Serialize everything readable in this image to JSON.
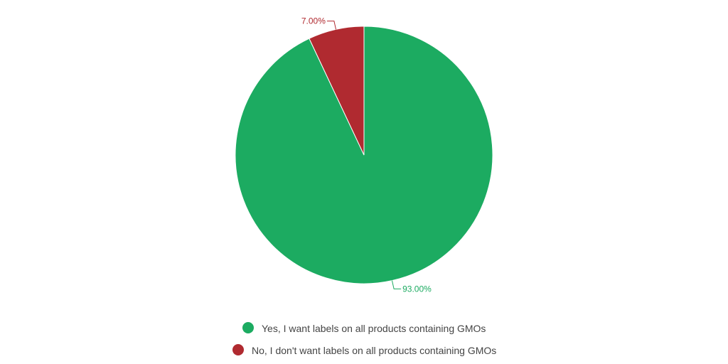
{
  "chart_data": {
    "type": "pie",
    "title": "",
    "slices": [
      {
        "name": "Yes, I want labels on all products containing GMOs",
        "value": 93.0,
        "label": "93.00%",
        "color": "#1cab61"
      },
      {
        "name": "No, I don't want labels on all products containing GMOs",
        "value": 7.0,
        "label": "7.00%",
        "color": "#b02a30"
      }
    ],
    "start_angle_deg": 0,
    "direction": "clockwise",
    "legend_position": "bottom",
    "legend_entries": [
      "Yes, I want labels on all products containing GMOs",
      "No, I don't want labels on all products containing GMOs"
    ]
  }
}
